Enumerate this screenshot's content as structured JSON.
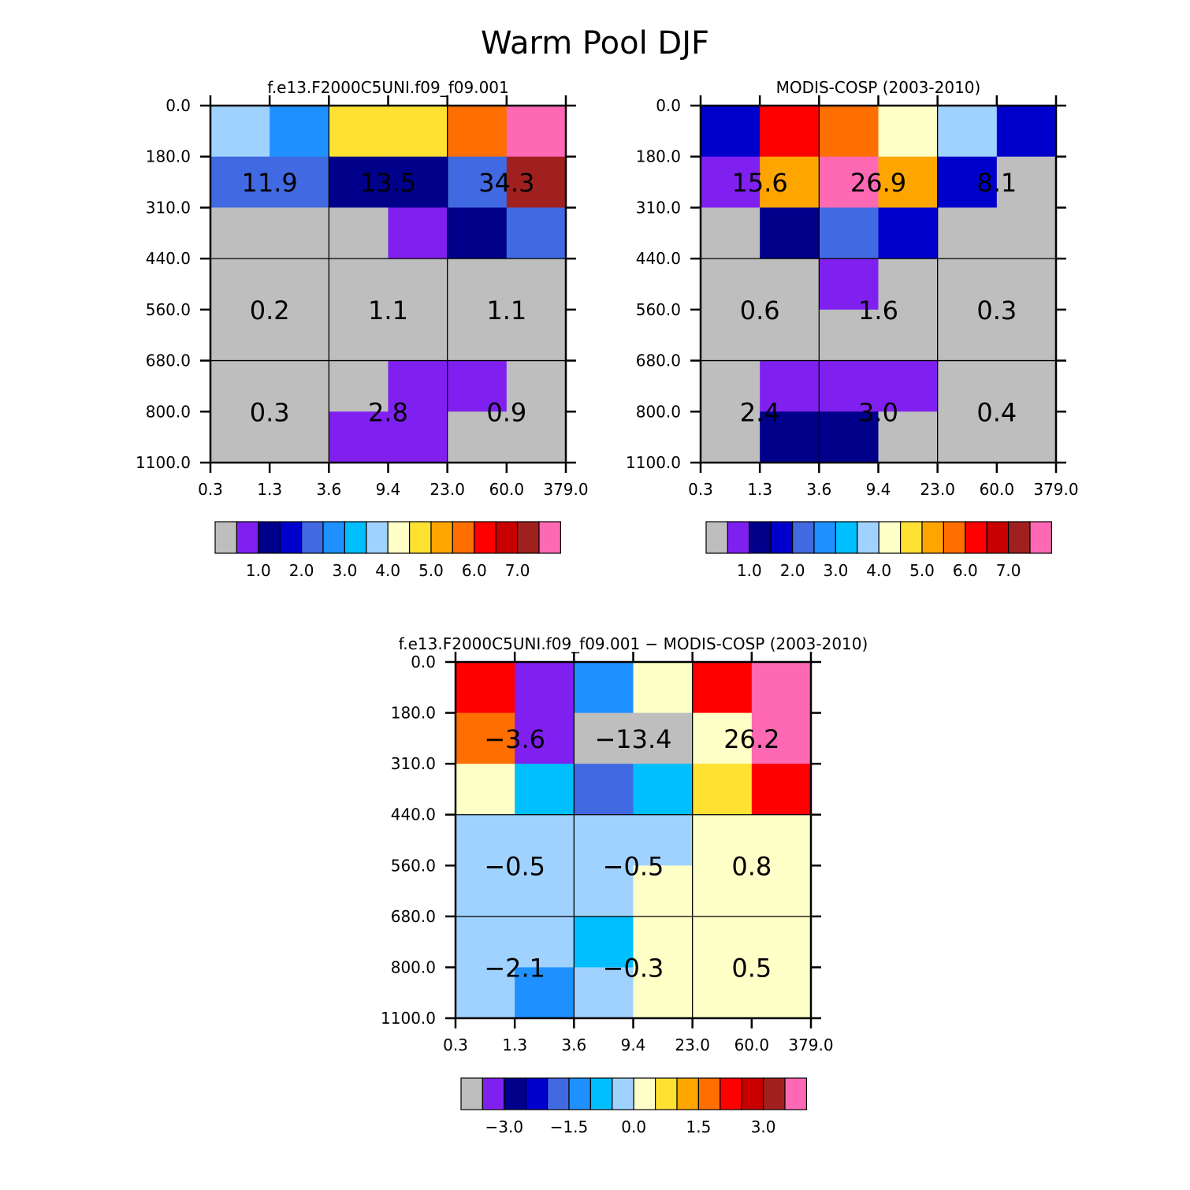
{
  "title": "Warm Pool DJF",
  "chart_data": [
    {
      "type": "heatmap",
      "title": "f.e13.F2000C5UNI.f09_f09.001",
      "y_tick_labels": [
        "0.0",
        "180.0",
        "310.0",
        "440.0",
        "560.0",
        "680.0",
        "800.0",
        "1100.0"
      ],
      "x_tick_labels": [
        "0.3",
        "1.3",
        "3.6",
        "9.4",
        "23.0",
        "60.0",
        "379.0"
      ],
      "cell_color_index": [
        [
          7,
          5,
          9,
          9,
          11,
          15
        ],
        [
          4,
          4,
          2,
          2,
          4,
          14
        ],
        [
          0,
          0,
          0,
          1,
          2,
          4
        ],
        [
          0,
          0,
          0,
          0,
          0,
          0
        ],
        [
          0,
          0,
          0,
          0,
          0,
          0
        ],
        [
          0,
          0,
          0,
          1,
          1,
          0
        ],
        [
          0,
          0,
          1,
          1,
          0,
          0
        ]
      ],
      "summary_values": [
        [
          "11.9",
          "13.5",
          "34.3"
        ],
        [
          "0.2",
          "1.1",
          "1.1"
        ],
        [
          "0.3",
          "2.8",
          "0.9"
        ]
      ],
      "colorbar": {
        "colors": [
          "#BEBEBE",
          "#8020F0",
          "#00008B",
          "#0000CD",
          "#4169E1",
          "#1E90FF",
          "#00BFFF",
          "#A0D2FF",
          "#FFFFC8",
          "#FFE132",
          "#FFA500",
          "#FF6E00",
          "#FF0000",
          "#C80000",
          "#A02020",
          "#FF69B4"
        ],
        "tick_labels": [
          "1.0",
          "2.0",
          "3.0",
          "4.0",
          "5.0",
          "6.0",
          "7.0"
        ]
      }
    },
    {
      "type": "heatmap",
      "title": "MODIS-COSP (2003-2010)",
      "y_tick_labels": [
        "0.0",
        "180.0",
        "310.0",
        "440.0",
        "560.0",
        "680.0",
        "800.0",
        "1100.0"
      ],
      "x_tick_labels": [
        "0.3",
        "1.3",
        "3.6",
        "9.4",
        "23.0",
        "60.0",
        "379.0"
      ],
      "cell_color_index": [
        [
          3,
          12,
          11,
          8,
          7,
          3
        ],
        [
          1,
          10,
          15,
          10,
          3,
          0
        ],
        [
          0,
          2,
          4,
          3,
          0,
          0
        ],
        [
          0,
          0,
          1,
          0,
          0,
          0
        ],
        [
          0,
          0,
          0,
          0,
          0,
          0
        ],
        [
          0,
          1,
          1,
          1,
          0,
          0
        ],
        [
          0,
          2,
          2,
          0,
          0,
          0
        ]
      ],
      "summary_values": [
        [
          "15.6",
          "26.9",
          "8.1"
        ],
        [
          "0.6",
          "1.6",
          "0.3"
        ],
        [
          "2.4",
          "3.0",
          "0.4"
        ]
      ],
      "colorbar": {
        "colors": [
          "#BEBEBE",
          "#8020F0",
          "#00008B",
          "#0000CD",
          "#4169E1",
          "#1E90FF",
          "#00BFFF",
          "#A0D2FF",
          "#FFFFC8",
          "#FFE132",
          "#FFA500",
          "#FF6E00",
          "#FF0000",
          "#C80000",
          "#A02020",
          "#FF69B4"
        ],
        "tick_labels": [
          "1.0",
          "2.0",
          "3.0",
          "4.0",
          "5.0",
          "6.0",
          "7.0"
        ]
      }
    },
    {
      "type": "heatmap",
      "title": "f.e13.F2000C5UNI.f09_f09.001 − MODIS-COSP (2003-2010)",
      "y_tick_labels": [
        "0.0",
        "180.0",
        "310.0",
        "440.0",
        "560.0",
        "680.0",
        "800.0",
        "1100.0"
      ],
      "x_tick_labels": [
        "0.3",
        "1.3",
        "3.6",
        "9.4",
        "23.0",
        "60.0",
        "379.0"
      ],
      "cell_color_index": [
        [
          12,
          1,
          5,
          8,
          12,
          15
        ],
        [
          11,
          1,
          0,
          0,
          8,
          15
        ],
        [
          8,
          6,
          4,
          6,
          9,
          12
        ],
        [
          7,
          7,
          7,
          7,
          8,
          8
        ],
        [
          7,
          7,
          7,
          8,
          8,
          8
        ],
        [
          7,
          7,
          6,
          8,
          8,
          8
        ],
        [
          7,
          5,
          7,
          8,
          8,
          8
        ]
      ],
      "summary_values": [
        [
          "−3.6",
          "−13.4",
          "26.2"
        ],
        [
          "−0.5",
          "−0.5",
          "0.8"
        ],
        [
          "−2.1",
          "−0.3",
          "0.5"
        ]
      ],
      "colorbar": {
        "colors": [
          "#BEBEBE",
          "#8020F0",
          "#00008B",
          "#0000CD",
          "#4169E1",
          "#1E90FF",
          "#00BFFF",
          "#A0D2FF",
          "#FFFFC8",
          "#FFE132",
          "#FFA500",
          "#FF6E00",
          "#FF0000",
          "#C80000",
          "#A02020",
          "#FF69B4"
        ],
        "tick_labels": [
          "−3.0",
          "−1.5",
          "0.0",
          "1.5",
          "3.0"
        ]
      }
    }
  ]
}
